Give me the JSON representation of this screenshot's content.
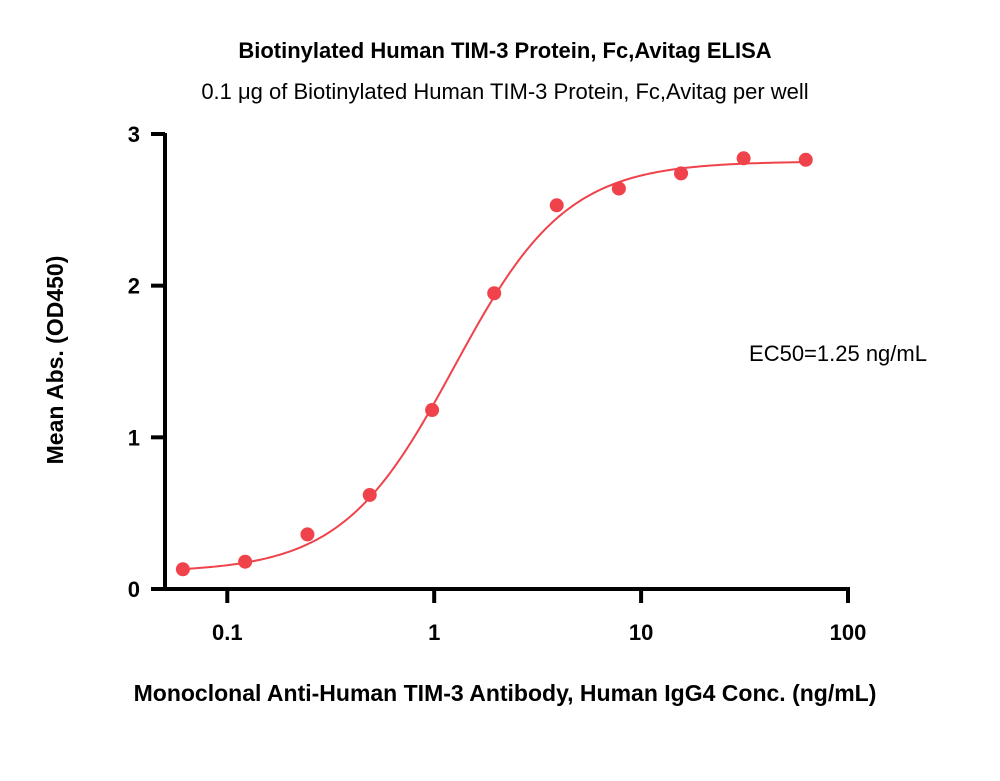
{
  "chart_data": {
    "type": "scatter",
    "title": "Biotinylated Human TIM-3 Protein, Fc,Avitag ELISA",
    "subtitle": "0.1 μg of Biotinylated Human TIM-3 Protein, Fc,Avitag per well",
    "xlabel": "Monoclonal Anti-Human TIM-3 Antibody, Human IgG4 Conc. (ng/mL)",
    "ylabel": "Mean Abs. (OD450)",
    "x_scale": "log",
    "xlim": [
      0.05,
      100
    ],
    "ylim": [
      0,
      3
    ],
    "x_ticks": [
      0.1,
      1,
      10,
      100
    ],
    "x_tick_labels": [
      "0.1",
      "1",
      "10",
      "100"
    ],
    "y_ticks": [
      0,
      1,
      2,
      3
    ],
    "y_tick_labels": [
      "0",
      "1",
      "2",
      "3"
    ],
    "grid": false,
    "series": [
      {
        "color": "#f0424a",
        "points": [
          {
            "x": 0.061,
            "y": 0.13
          },
          {
            "x": 0.122,
            "y": 0.18
          },
          {
            "x": 0.244,
            "y": 0.36
          },
          {
            "x": 0.488,
            "y": 0.62
          },
          {
            "x": 0.977,
            "y": 1.18
          },
          {
            "x": 1.95,
            "y": 1.95
          },
          {
            "x": 3.91,
            "y": 2.53
          },
          {
            "x": 7.81,
            "y": 2.64
          },
          {
            "x": 15.6,
            "y": 2.74
          },
          {
            "x": 31.3,
            "y": 2.84
          },
          {
            "x": 62.5,
            "y": 2.83
          }
        ],
        "fit": {
          "model": "4PL",
          "bottom": 0.11,
          "top": 2.82,
          "ec50": 1.25,
          "hill": 1.6
        }
      }
    ],
    "annotations": [
      {
        "text": "EC50=1.25 ng/mL"
      }
    ]
  }
}
